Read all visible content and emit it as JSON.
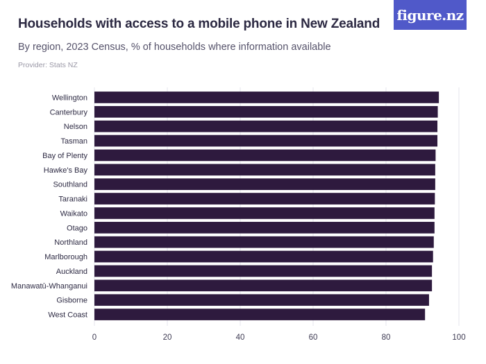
{
  "header": {
    "title": "Households with access to a mobile phone in New Zealand",
    "subtitle": "By region, 2023 Census, % of households where information available",
    "provider": "Provider: Stats NZ",
    "logo_text": "figure.nz"
  },
  "colors": {
    "bar": "#2e1a3e",
    "logo_bg": "#5059c9",
    "grid": "#e6e6ec"
  },
  "chart_data": {
    "type": "bar",
    "orientation": "horizontal",
    "categories": [
      "Wellington",
      "Canterbury",
      "Nelson",
      "Tasman",
      "Bay of Plenty",
      "Hawke's Bay",
      "Southland",
      "Taranaki",
      "Waikato",
      "Otago",
      "Northland",
      "Marlborough",
      "Auckland",
      "Manawatū-Whanganui",
      "Gisborne",
      "West Coast"
    ],
    "values": [
      94.5,
      94.2,
      94.1,
      94.1,
      93.6,
      93.5,
      93.5,
      93.4,
      93.3,
      93.3,
      93.1,
      92.9,
      92.6,
      92.6,
      91.8,
      90.7
    ],
    "xlim": [
      0,
      100
    ],
    "xticks": [
      0,
      20,
      40,
      60,
      80,
      100
    ],
    "xlabel": "",
    "ylabel": "",
    "grid": true,
    "legend": "none"
  }
}
